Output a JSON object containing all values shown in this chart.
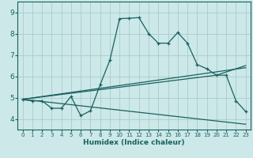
{
  "xlabel": "Humidex (Indice chaleur)",
  "bg_color": "#cce8e8",
  "grid_color": "#aacccc",
  "line_color": "#1a6060",
  "xlim": [
    -0.5,
    23.5
  ],
  "ylim": [
    3.5,
    9.5
  ],
  "xticks": [
    0,
    1,
    2,
    3,
    4,
    5,
    6,
    7,
    8,
    9,
    10,
    11,
    12,
    13,
    14,
    15,
    16,
    17,
    18,
    19,
    20,
    21,
    22,
    23
  ],
  "yticks": [
    4,
    5,
    6,
    7,
    8,
    9
  ],
  "series1_x": [
    0,
    1,
    2,
    3,
    4,
    5,
    6,
    7,
    8,
    9,
    10,
    11,
    12,
    13,
    14,
    15,
    16,
    17,
    18,
    19,
    20,
    21,
    22,
    23
  ],
  "series1_y": [
    4.9,
    4.85,
    4.85,
    4.5,
    4.5,
    5.05,
    4.15,
    4.38,
    5.6,
    6.75,
    8.7,
    8.72,
    8.75,
    8.0,
    7.55,
    7.55,
    8.05,
    7.55,
    6.55,
    6.35,
    6.05,
    6.05,
    4.85,
    4.35
  ],
  "series2_x": [
    0,
    23
  ],
  "series2_y": [
    4.92,
    6.4
  ],
  "series3_x": [
    0,
    23
  ],
  "series3_y": [
    4.92,
    3.75
  ],
  "series4_x": [
    0,
    20,
    23
  ],
  "series4_y": [
    4.92,
    6.05,
    6.5
  ]
}
